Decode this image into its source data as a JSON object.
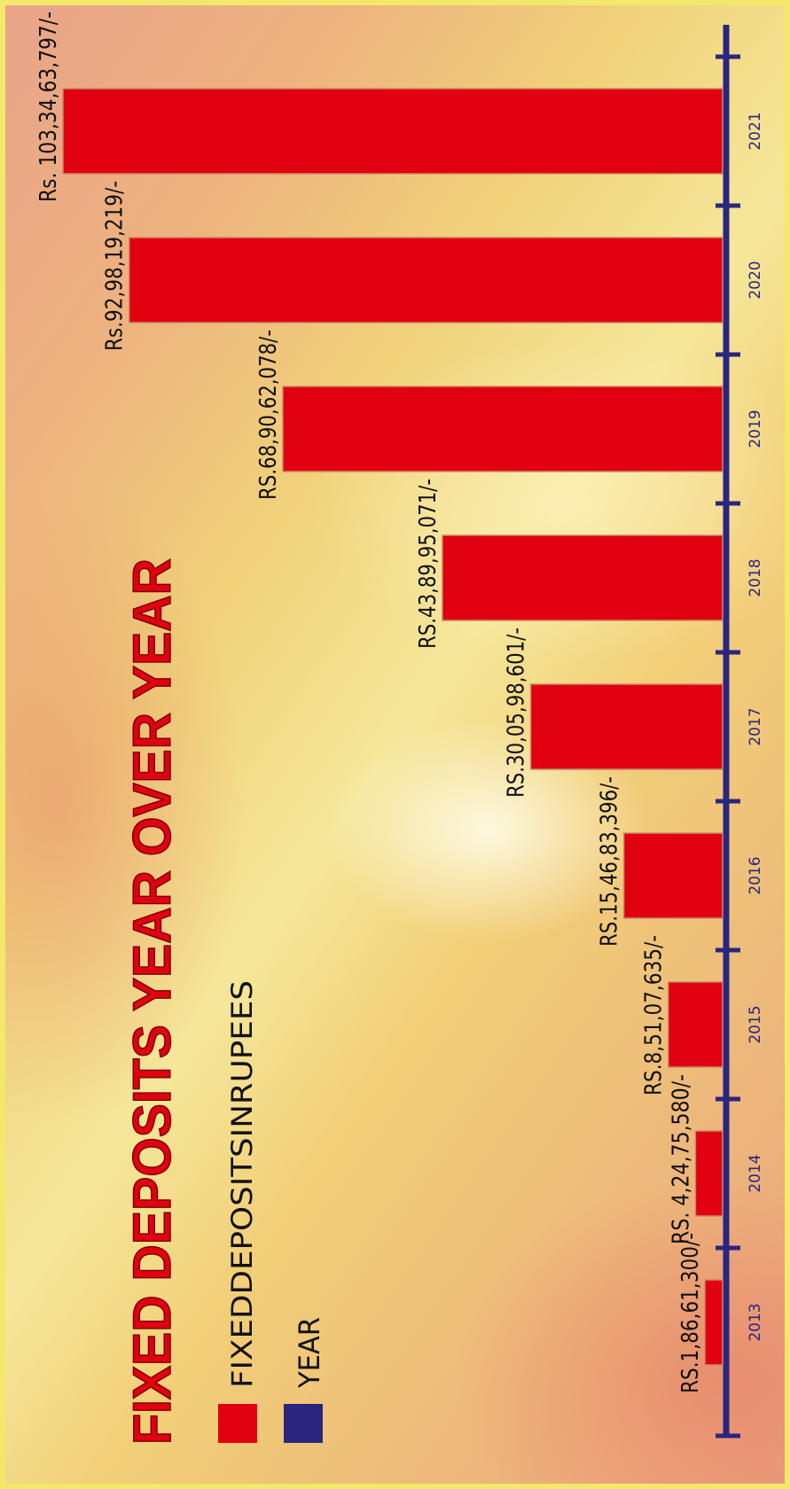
{
  "chart_data": {
    "type": "bar",
    "orientation": "horizontal",
    "title": "FIXED DEPOSITS YEAR OVER YEAR",
    "legend": [
      {
        "label": "FIXEDDEPOSITSINRUPEES",
        "color": "#e10010"
      },
      {
        "label": "YEAR",
        "color": "#2a2680"
      }
    ],
    "categories": [
      "2013",
      "2014",
      "2015",
      "2016",
      "2017",
      "2018",
      "2019",
      "2020",
      "2021"
    ],
    "values": [
      18661300,
      42475580,
      85107635,
      154683396,
      300598601,
      438995071,
      689062078,
      929819219,
      1033463797
    ],
    "data_labels": [
      "RS.1,86,61,300/-",
      "RS. 4,24,75,580/-",
      "RS.8,51,07,635/-",
      "RS.15,46,83,396/-",
      "RS.30,05,98,601/-",
      "RS.43,89,95,071/-",
      "RS.68,90,62,078/-",
      "Rs.92,98,19,219/-",
      "Rs. 103,34,63,797/-"
    ],
    "bar_color": "#e10010",
    "axis_color": "#2a2680",
    "xlim": [
      0,
      1033463797
    ]
  }
}
